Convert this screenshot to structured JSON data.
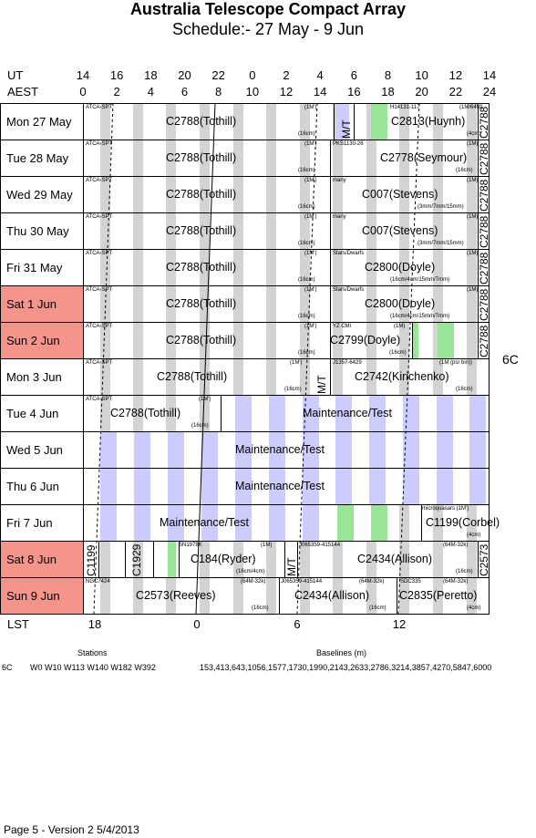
{
  "header": {
    "title": "Australia Telescope Compact Array",
    "subtitle": "Schedule:- 27 May - 9  Jun"
  },
  "axes": {
    "ut_label": "UT",
    "aest_label": "AEST",
    "ut_ticks": [
      "14",
      "16",
      "18",
      "20",
      "22",
      "0",
      "2",
      "4",
      "6",
      "8",
      "10",
      "12",
      "14"
    ],
    "aest_ticks": [
      "0",
      "2",
      "4",
      "6",
      "8",
      "10",
      "12",
      "14",
      "16",
      "18",
      "20",
      "22",
      "24"
    ],
    "lst_label": "LST",
    "lst_ticks": [
      "18",
      "0",
      "6",
      "12"
    ]
  },
  "config_label": "6C",
  "days": [
    {
      "label": "Mon  27 May",
      "weekend": false,
      "projects": [
        {
          "name": "C2788(Tothill)",
          "x": 90
        },
        {
          "name": "C2813(Huynh)",
          "x": 337
        }
      ],
      "notes": [
        {
          "t": "ATCA-SPT",
          "x": 2,
          "y": 1
        },
        {
          "t": "(1M')",
          "x": 242,
          "y": 1
        },
        {
          "t": "(16cm)",
          "x": 235,
          "y": 30
        },
        {
          "t": "H14131-117",
          "x": 336,
          "y": 1
        },
        {
          "t": "(1M/64M)",
          "x": 412,
          "y": 1
        },
        {
          "t": "(4cm)",
          "x": 420,
          "y": 30
        }
      ],
      "vtexts": [
        {
          "t": "M/T",
          "x": 281
        },
        {
          "t": "C2788",
          "x": 432
        }
      ]
    },
    {
      "label": "Tue  28 May",
      "weekend": false,
      "projects": [
        {
          "name": "C2788(Tothill)",
          "x": 90
        },
        {
          "name": "C2778(Seymour)",
          "x": 325
        }
      ],
      "notes": [
        {
          "t": "ATCA-SPT",
          "x": 2,
          "y": 1
        },
        {
          "t": "(1M')",
          "x": 242,
          "y": 1
        },
        {
          "t": "(16cm)",
          "x": 235,
          "y": 30
        },
        {
          "t": "PKS1130-26",
          "x": 273,
          "y": 1
        },
        {
          "t": "(1M)",
          "x": 420,
          "y": 1
        },
        {
          "t": "(16cm)",
          "x": 408,
          "y": 30
        }
      ],
      "vtexts": [
        {
          "t": "C2788",
          "x": 432
        }
      ]
    },
    {
      "label": "Wed 29 May",
      "weekend": false,
      "projects": [
        {
          "name": "C2788(Tothill)",
          "x": 90
        },
        {
          "name": "C007(Stevens)",
          "x": 305
        }
      ],
      "notes": [
        {
          "t": "ATCA-SPT",
          "x": 2,
          "y": 1
        },
        {
          "t": "(1M')",
          "x": 242,
          "y": 1
        },
        {
          "t": "(16cm)",
          "x": 235,
          "y": 30
        },
        {
          "t": "many",
          "x": 273,
          "y": 1
        },
        {
          "t": "(1M)",
          "x": 420,
          "y": 1
        },
        {
          "t": "(3mm/7mm/15mm)",
          "x": 366,
          "y": 30
        }
      ],
      "vtexts": [
        {
          "t": "C2788",
          "x": 432
        }
      ]
    },
    {
      "label": "Thu  30 May",
      "weekend": false,
      "projects": [
        {
          "name": "C2788(Tothill)",
          "x": 90
        },
        {
          "name": "C007(Stevens)",
          "x": 305
        }
      ],
      "notes": [
        {
          "t": "ATCA-SPT",
          "x": 2,
          "y": 1
        },
        {
          "t": "(1M')",
          "x": 242,
          "y": 1
        },
        {
          "t": "(16cm)",
          "x": 235,
          "y": 30
        },
        {
          "t": "many",
          "x": 273,
          "y": 1
        },
        {
          "t": "(1M)",
          "x": 420,
          "y": 1
        },
        {
          "t": "(3mm/7mm/15mm)",
          "x": 366,
          "y": 30
        }
      ],
      "vtexts": [
        {
          "t": "C2788",
          "x": 432
        }
      ]
    },
    {
      "label": "Fri    31 May",
      "weekend": false,
      "projects": [
        {
          "name": "C2788(Tothill)",
          "x": 90
        },
        {
          "name": "C2800(Doyle)",
          "x": 308
        }
      ],
      "notes": [
        {
          "t": "ATCA-SPT",
          "x": 2,
          "y": 1
        },
        {
          "t": "(1M')",
          "x": 242,
          "y": 1
        },
        {
          "t": "(16cm)",
          "x": 235,
          "y": 30
        },
        {
          "t": "Stars/Dwarfs",
          "x": 273,
          "y": 1
        },
        {
          "t": "(1M)",
          "x": 420,
          "y": 1
        },
        {
          "t": "(16cm/4cm/15mm/7mm)",
          "x": 336,
          "y": 30
        }
      ],
      "vtexts": [
        {
          "t": "C2788",
          "x": 432
        }
      ]
    },
    {
      "label": "Sat    1  Jun",
      "weekend": true,
      "projects": [
        {
          "name": "C2788(Tothill)",
          "x": 90
        },
        {
          "name": "C2800(Doyle)",
          "x": 308
        }
      ],
      "notes": [
        {
          "t": "ATCA-SPT",
          "x": 2,
          "y": 1
        },
        {
          "t": "(1M')",
          "x": 242,
          "y": 1
        },
        {
          "t": "(16cm)",
          "x": 235,
          "y": 30
        },
        {
          "t": "Stars/Dwarfs",
          "x": 273,
          "y": 1
        },
        {
          "t": "(1M)",
          "x": 420,
          "y": 1
        },
        {
          "t": "(16cm/4cm/15mm/7mm)",
          "x": 336,
          "y": 30
        }
      ],
      "vtexts": [
        {
          "t": "C2788",
          "x": 432
        }
      ]
    },
    {
      "label": "Sun   2  Jun",
      "weekend": true,
      "projects": [
        {
          "name": "C2788(Tothill)",
          "x": 90
        },
        {
          "name": "C2799(Doyle)",
          "x": 270
        }
      ],
      "notes": [
        {
          "t": "ATCA-SPT",
          "x": 2,
          "y": 1
        },
        {
          "t": "(1M')",
          "x": 242,
          "y": 1
        },
        {
          "t": "(16cm)",
          "x": 235,
          "y": 30
        },
        {
          "t": "YZ CMi",
          "x": 273,
          "y": 1
        },
        {
          "t": "(1M)",
          "x": 340,
          "y": 1
        },
        {
          "t": "(16cm)",
          "x": 335,
          "y": 30
        }
      ],
      "vtexts": [
        {
          "t": "C2788",
          "x": 432
        }
      ]
    },
    {
      "label": "Mon   3  Jun",
      "weekend": false,
      "projects": [
        {
          "name": "C2788(Tothill)",
          "x": 80
        },
        {
          "name": "C2742(Kirichenko)",
          "x": 297
        }
      ],
      "notes": [
        {
          "t": "ATCA-SPT",
          "x": 2,
          "y": 1
        },
        {
          "t": "(1M')",
          "x": 226,
          "y": 1
        },
        {
          "t": "(16cm)",
          "x": 220,
          "y": 30
        },
        {
          "t": "J1357-6429",
          "x": 273,
          "y": 1
        },
        {
          "t": "(1M (psr bin))",
          "x": 390,
          "y": 1
        },
        {
          "t": "(16cm)",
          "x": 408,
          "y": 30
        }
      ],
      "vtexts": [
        {
          "t": "M/T",
          "x": 254
        }
      ]
    },
    {
      "label": "Tue    4  Jun",
      "weekend": false,
      "projects": [
        {
          "name": "C2788(Tothill)",
          "x": 29
        },
        {
          "name": "Maintenance/Test",
          "x": 240
        }
      ],
      "notes": [
        {
          "t": "ATCA-SPT",
          "x": 2,
          "y": 1
        },
        {
          "t": "(1M')",
          "x": 126,
          "y": 1
        },
        {
          "t": "(16cm)",
          "x": 118,
          "y": 30
        }
      ],
      "vtexts": []
    },
    {
      "label": "Wed   5  Jun",
      "weekend": false,
      "projects": [
        {
          "name": "Maintenance/Test",
          "x": 166
        }
      ],
      "notes": [],
      "vtexts": []
    },
    {
      "label": "Thu    6  Jun",
      "weekend": false,
      "projects": [
        {
          "name": "Maintenance/Test",
          "x": 166
        }
      ],
      "notes": [],
      "vtexts": []
    },
    {
      "label": "Fri     7  Jun",
      "weekend": false,
      "projects": [
        {
          "name": "Maintenance/Test",
          "x": 83
        },
        {
          "name": "C1199(Corbel)",
          "x": 375
        }
      ],
      "notes": [
        {
          "t": "microquasars (1M')",
          "x": 371,
          "y": 1
        },
        {
          "t": "(4cm)",
          "x": 420,
          "y": 30
        }
      ],
      "vtexts": []
    },
    {
      "label": "Sat    8  Jun",
      "weekend": true,
      "projects": [
        {
          "name": "C184(Ryder)",
          "x": 117
        },
        {
          "name": "C2434(Allison)",
          "x": 300
        }
      ],
      "notes": [
        {
          "t": "SN1978K",
          "x": 104,
          "y": 1
        },
        {
          "t": "(1M)",
          "x": 194,
          "y": 1
        },
        {
          "t": "(16cm/4cm)",
          "x": 167,
          "y": 30
        },
        {
          "t": "J065359-415144",
          "x": 236,
          "y": 1
        },
        {
          "t": "(64M-32k)",
          "x": 394,
          "y": 1
        },
        {
          "t": "(16cm)",
          "x": 408,
          "y": 30
        }
      ],
      "vtexts": [
        {
          "t": "C1199",
          "x": 1
        },
        {
          "t": "C1929",
          "x": 51
        },
        {
          "t": "M/T",
          "x": 221
        },
        {
          "t": "C2573",
          "x": 432
        }
      ]
    },
    {
      "label": "Sun   9  Jun",
      "weekend": true,
      "projects": [
        {
          "name": "C2573(Reeves)",
          "x": 57
        },
        {
          "name": "C2434(Allison)",
          "x": 231
        },
        {
          "name": "C2835(Peretto)",
          "x": 346
        }
      ],
      "notes": [
        {
          "t": "NGC7424",
          "x": 2,
          "y": 1
        },
        {
          "t": "(64M-32k)",
          "x": 172,
          "y": 1
        },
        {
          "t": "(16cm)",
          "x": 184,
          "y": 30
        },
        {
          "t": "J065359-415144",
          "x": 216,
          "y": 1
        },
        {
          "t": "(64M-32k)",
          "x": 302,
          "y": 1
        },
        {
          "t": "(16cm)",
          "x": 313,
          "y": 30
        },
        {
          "t": "SDC335",
          "x": 347,
          "y": 1
        },
        {
          "t": "(64M-32k)",
          "x": 394,
          "y": 1
        },
        {
          "t": "(4cm)",
          "x": 420,
          "y": 30
        }
      ],
      "vtexts": []
    }
  ],
  "footer": {
    "stations_label": "Stations",
    "config": "6C",
    "stations": "W0 W10 W113 W140 W182 W392",
    "baselines_label": "Baselines (m)",
    "baselines": "153,413,643,1056,1577,1730,1990,2143,2633,2786,3214,3857,4270,5847,6000",
    "page_info": "Page 5 - Version 2  5/4/2013"
  }
}
